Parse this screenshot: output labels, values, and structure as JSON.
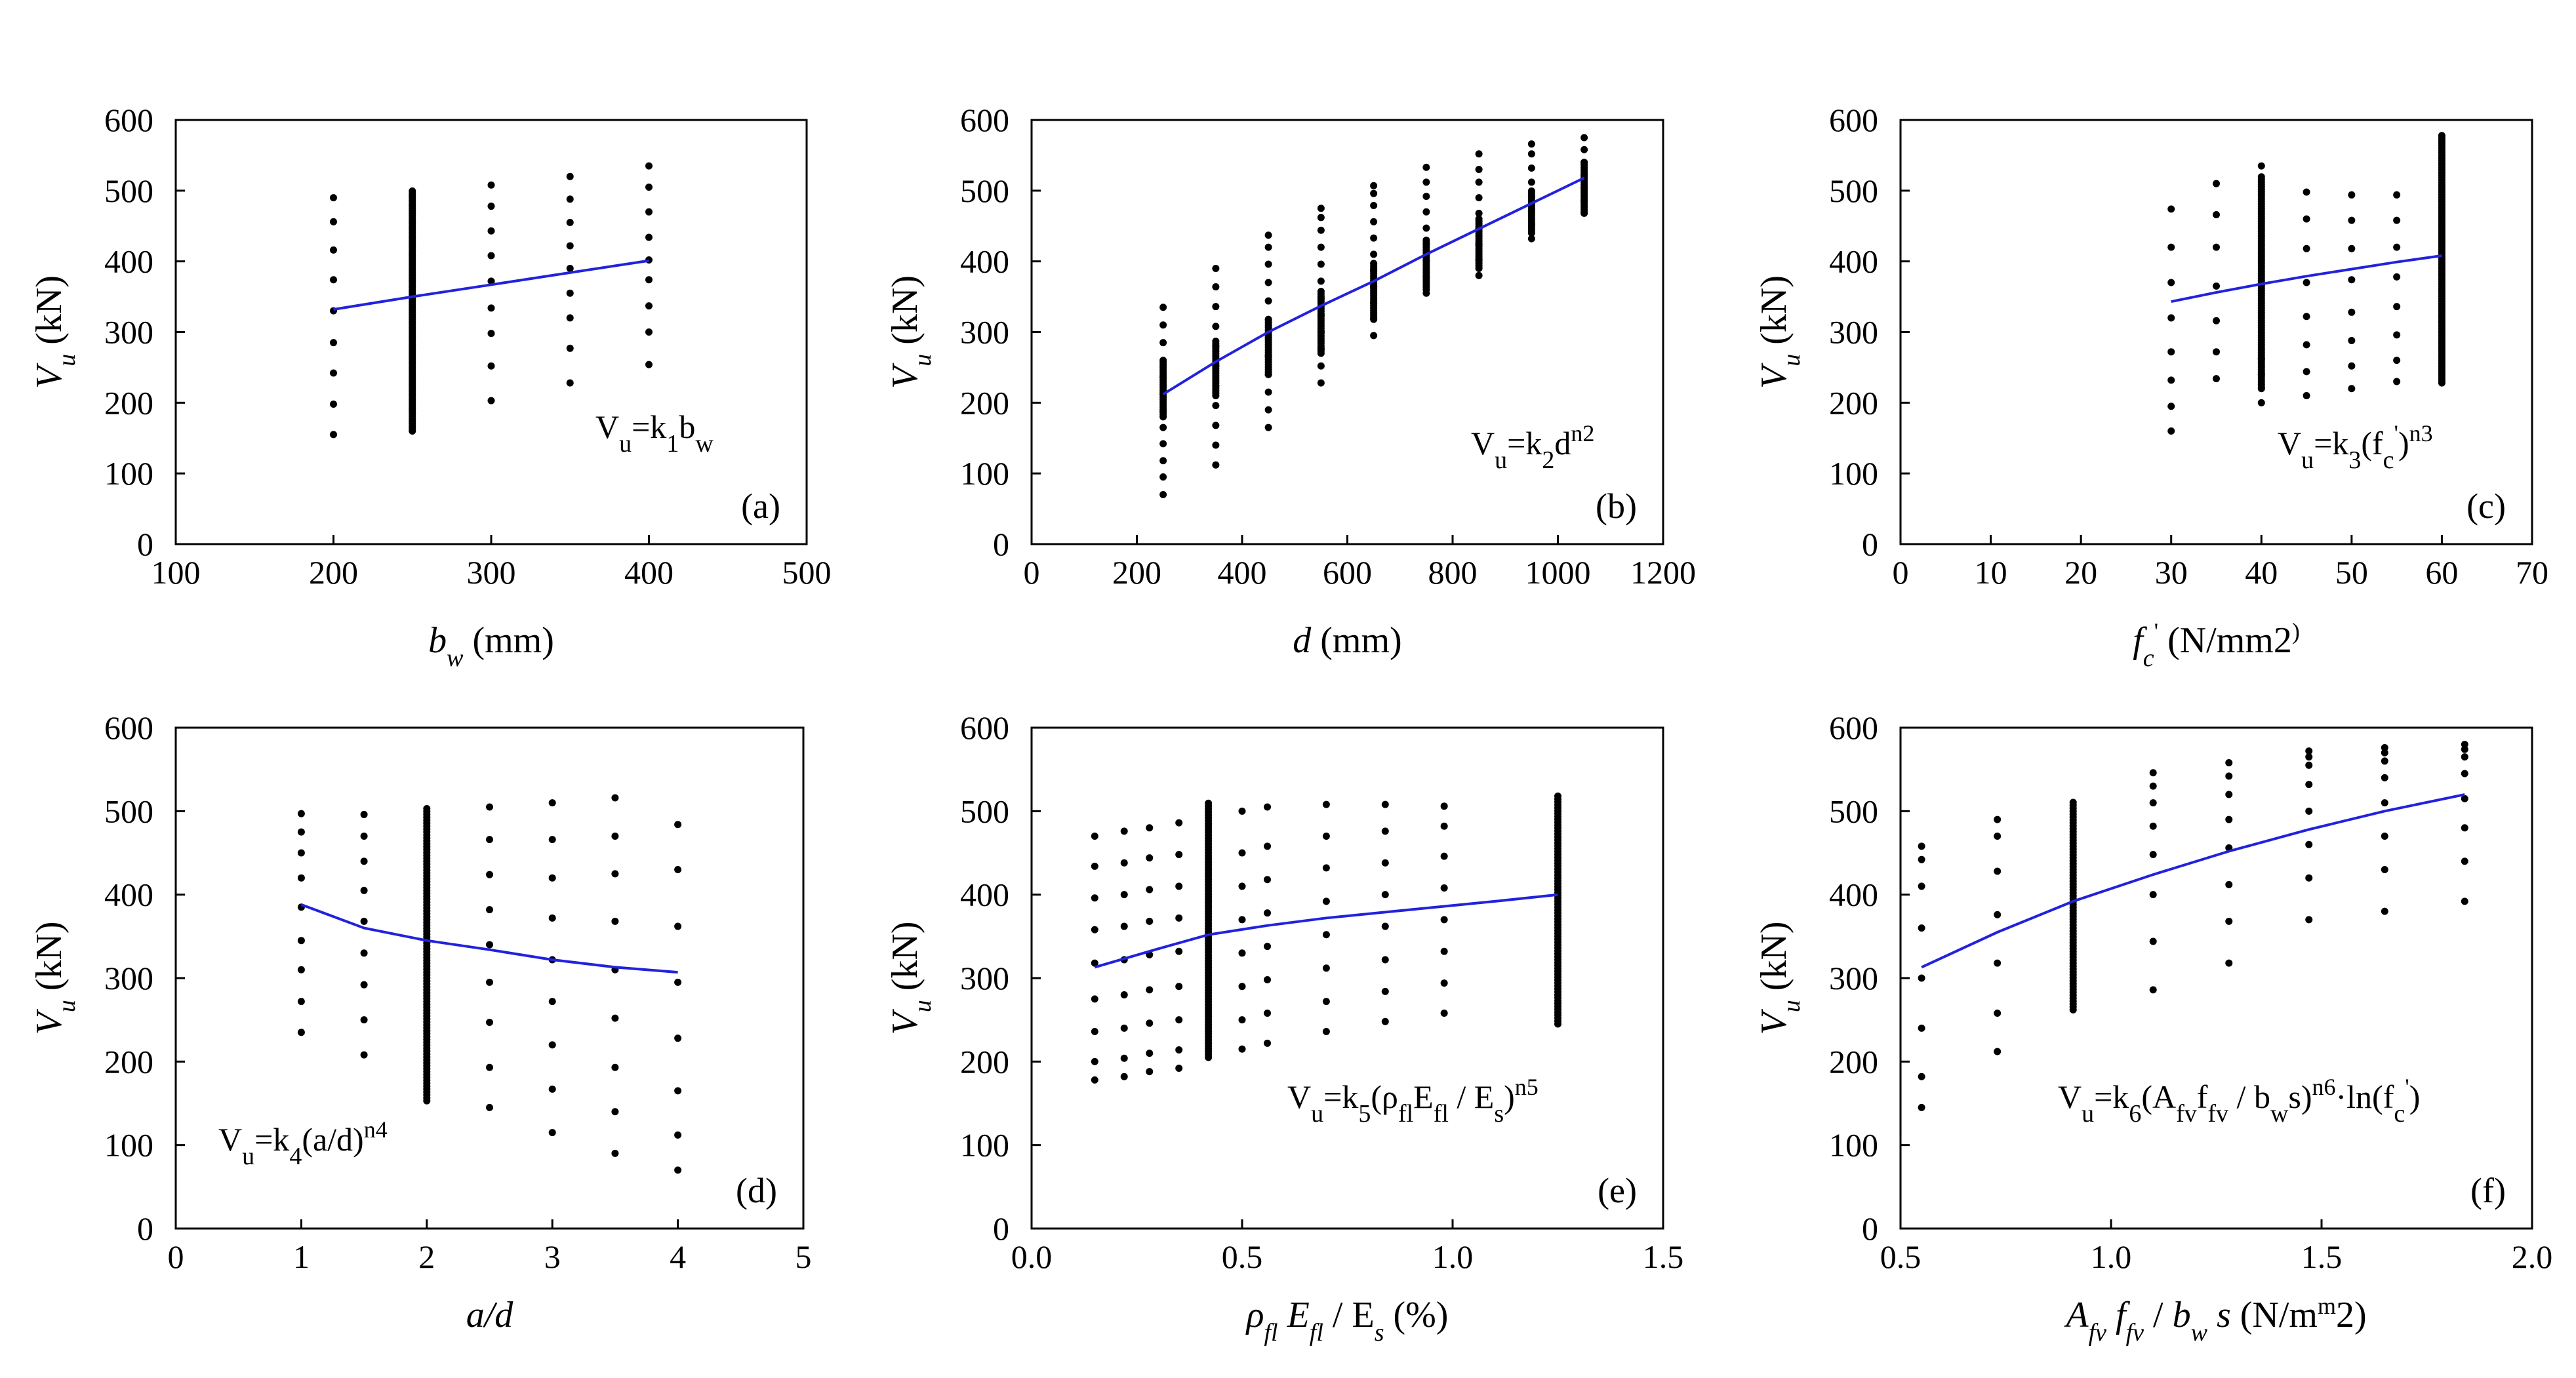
{
  "figure": {
    "shared_y_label": "Vu (kN)",
    "line_color": "#2222dd",
    "dot_color": "#000000"
  },
  "chart_data": [
    {
      "type": "scatter",
      "panel": "(a)",
      "xlabel": "bw (mm)",
      "ylabel": "Vu (kN)",
      "formula": "Vu=k1bw",
      "xlim": [
        100,
        500
      ],
      "ylim": [
        0,
        600
      ],
      "xticks": [
        100,
        200,
        300,
        400,
        500
      ],
      "xtick_labels": [
        "100",
        "200",
        "300",
        "400",
        "500"
      ],
      "yticks": [
        0,
        100,
        200,
        300,
        400,
        500,
        600
      ],
      "ytick_labels": [
        "0",
        "100",
        "200",
        "300",
        "400",
        "500",
        "600"
      ],
      "points": [
        {
          "x": 200,
          "ys": [
            155,
            198,
            242,
            285,
            330,
            374,
            416,
            456,
            490
          ]
        },
        {
          "x": 250,
          "dense": [
            160,
            502
          ]
        },
        {
          "x": 300,
          "ys": [
            203,
            252,
            298,
            334,
            372,
            408,
            443,
            478,
            508
          ]
        },
        {
          "x": 350,
          "ys": [
            228,
            277,
            320,
            355,
            390,
            422,
            455,
            488,
            520
          ]
        },
        {
          "x": 400,
          "ys": [
            254,
            300,
            337,
            374,
            402,
            434,
            470,
            505,
            535
          ]
        }
      ],
      "fit": [
        [
          200,
          332
        ],
        [
          250,
          350
        ],
        [
          300,
          367
        ],
        [
          350,
          384
        ],
        [
          400,
          401
        ]
      ]
    },
    {
      "type": "scatter",
      "panel": "(b)",
      "xlabel": "d (mm)",
      "ylabel": "Vu (kN)",
      "formula": "Vu=k2dn2",
      "xlim": [
        0,
        1200
      ],
      "ylim": [
        0,
        600
      ],
      "xticks": [
        0,
        200,
        400,
        600,
        800,
        1000,
        1200
      ],
      "xtick_labels": [
        "0",
        "200",
        "400",
        "600",
        "800",
        "1000",
        "1200"
      ],
      "yticks": [
        0,
        100,
        200,
        300,
        400,
        500,
        600
      ],
      "ytick_labels": [
        "0",
        "100",
        "200",
        "300",
        "400",
        "500",
        "600"
      ],
      "points": [
        {
          "x": 250,
          "ys": [
            70,
            95,
            118,
            142,
            165,
            188,
            212,
            236,
            260,
            285,
            310,
            335
          ],
          "dense": [
            180,
            260
          ]
        },
        {
          "x": 350,
          "ys": [
            112,
            140,
            168,
            196,
            224,
            252,
            280,
            308,
            336,
            364,
            390
          ],
          "dense": [
            210,
            290
          ]
        },
        {
          "x": 450,
          "ys": [
            165,
            190,
            215,
            240,
            266,
            292,
            318,
            344,
            370,
            396,
            420,
            437
          ],
          "dense": [
            240,
            320
          ]
        },
        {
          "x": 550,
          "ys": [
            228,
            252,
            276,
            300,
            324,
            348,
            372,
            396,
            420,
            444,
            462,
            475
          ],
          "dense": [
            270,
            360
          ]
        },
        {
          "x": 650,
          "ys": [
            295,
            318,
            341,
            364,
            387,
            410,
            433,
            456,
            479,
            496,
            507
          ],
          "dense": [
            320,
            400
          ]
        },
        {
          "x": 750,
          "ys": [
            355,
            378,
            401,
            424,
            447,
            470,
            492,
            512,
            533
          ],
          "dense": [
            360,
            430
          ]
        },
        {
          "x": 850,
          "ys": [
            380,
            402,
            424,
            446,
            468,
            490,
            512,
            530,
            552
          ],
          "dense": [
            390,
            460
          ]
        },
        {
          "x": 950,
          "ys": [
            432,
            452,
            472,
            492,
            512,
            532,
            552,
            566
          ],
          "dense": [
            440,
            500
          ]
        },
        {
          "x": 1050,
          "ys": [
            468,
            486,
            504,
            522,
            540,
            558,
            575
          ],
          "dense": [
            470,
            540
          ]
        }
      ],
      "fit": [
        [
          250,
          212
        ],
        [
          350,
          258
        ],
        [
          450,
          300
        ],
        [
          550,
          337
        ],
        [
          650,
          372
        ],
        [
          750,
          410
        ],
        [
          850,
          446
        ],
        [
          950,
          482
        ],
        [
          1050,
          518
        ]
      ]
    },
    {
      "type": "scatter",
      "panel": "(c)",
      "xlabel": "fc' (N/mm2)",
      "ylabel": "Vu (kN)",
      "formula": "Vu=k3(fc')n3",
      "xlim": [
        0,
        70
      ],
      "ylim": [
        0,
        600
      ],
      "xticks": [
        0,
        10,
        20,
        30,
        40,
        50,
        60,
        70
      ],
      "xtick_labels": [
        "0",
        "10",
        "20",
        "30",
        "40",
        "50",
        "60",
        "70"
      ],
      "yticks": [
        0,
        100,
        200,
        300,
        400,
        500,
        600
      ],
      "ytick_labels": [
        "0",
        "100",
        "200",
        "300",
        "400",
        "500",
        "600"
      ],
      "points": [
        {
          "x": 30,
          "ys": [
            160,
            195,
            232,
            272,
            320,
            370,
            420,
            474
          ]
        },
        {
          "x": 35,
          "ys": [
            234,
            272,
            316,
            365,
            420,
            466,
            510
          ]
        },
        {
          "x": 40,
          "ys": [
            200,
            220,
            240,
            262,
            535
          ],
          "dense": [
            222,
            520
          ]
        },
        {
          "x": 45,
          "ys": [
            210,
            244,
            282,
            322,
            370,
            418,
            460,
            498
          ]
        },
        {
          "x": 50,
          "ys": [
            220,
            252,
            288,
            328,
            374,
            418,
            458,
            494
          ]
        },
        {
          "x": 55,
          "ys": [
            230,
            260,
            296,
            336,
            378,
            420,
            458,
            494
          ]
        },
        {
          "x": 60,
          "dense": [
            228,
            578
          ]
        }
      ],
      "fit": [
        [
          30,
          343
        ],
        [
          35,
          356
        ],
        [
          40,
          368
        ],
        [
          45,
          379
        ],
        [
          50,
          389
        ],
        [
          55,
          399
        ],
        [
          60,
          408
        ]
      ]
    },
    {
      "type": "scatter",
      "panel": "(d)",
      "xlabel": "a/d",
      "ylabel": "Vu (kN)",
      "formula": "Vu=k4(a/d)n4",
      "xlim": [
        0,
        5
      ],
      "ylim": [
        0,
        600
      ],
      "xticks": [
        0,
        1,
        2,
        3,
        4,
        5
      ],
      "xtick_labels": [
        "0",
        "1",
        "2",
        "3",
        "4",
        "5"
      ],
      "yticks": [
        0,
        100,
        200,
        300,
        400,
        500,
        600
      ],
      "ytick_labels": [
        "0",
        "100",
        "200",
        "300",
        "400",
        "500",
        "600"
      ],
      "points": [
        {
          "x": 1,
          "ys": [
            235,
            272,
            310,
            345,
            385,
            420,
            450,
            475,
            497
          ]
        },
        {
          "x": 1.5,
          "ys": [
            208,
            250,
            292,
            330,
            368,
            405,
            440,
            470,
            496
          ]
        },
        {
          "x": 2,
          "dense": [
            153,
            503
          ]
        },
        {
          "x": 2.5,
          "ys": [
            145,
            193,
            247,
            295,
            340,
            382,
            424,
            466,
            505
          ]
        },
        {
          "x": 3,
          "ys": [
            115,
            167,
            220,
            272,
            322,
            372,
            420,
            466,
            510
          ]
        },
        {
          "x": 3.5,
          "ys": [
            90,
            140,
            193,
            252,
            310,
            368,
            425,
            470,
            516
          ]
        },
        {
          "x": 4,
          "ys": [
            70,
            112,
            165,
            228,
            295,
            362,
            430,
            484
          ]
        }
      ],
      "fit": [
        [
          1,
          388
        ],
        [
          1.5,
          360
        ],
        [
          2,
          345
        ],
        [
          2.5,
          334
        ],
        [
          3,
          322
        ],
        [
          3.5,
          313
        ],
        [
          4,
          307
        ]
      ]
    },
    {
      "type": "scatter",
      "panel": "(e)",
      "xlabel": "ρfl Efl / Es (%)",
      "ylabel": "Vu (kN)",
      "formula": "Vu=k5(ρflEfl / Es)n5",
      "xlim": [
        0,
        1.5
      ],
      "ylim": [
        0,
        600
      ],
      "xticks": [
        0,
        0.5,
        1.0,
        1.5
      ],
      "xtick_labels": [
        "0.0",
        "0.5",
        "1.0",
        "1.5"
      ],
      "yticks": [
        0,
        100,
        200,
        300,
        400,
        500,
        600
      ],
      "ytick_labels": [
        "0",
        "100",
        "200",
        "300",
        "400",
        "500",
        "600"
      ],
      "points": [
        {
          "x": 0.15,
          "ys": [
            178,
            200,
            236,
            275,
            318,
            358,
            396,
            434,
            470
          ]
        },
        {
          "x": 0.22,
          "ys": [
            182,
            204,
            240,
            280,
            322,
            362,
            400,
            438,
            476
          ]
        },
        {
          "x": 0.28,
          "ys": [
            188,
            210,
            246,
            286,
            328,
            368,
            406,
            444,
            480
          ]
        },
        {
          "x": 0.35,
          "ys": [
            192,
            214,
            250,
            290,
            332,
            372,
            410,
            448,
            486
          ]
        },
        {
          "x": 0.42,
          "dense": [
            205,
            510
          ]
        },
        {
          "x": 0.5,
          "ys": [
            215,
            250,
            290,
            330,
            370,
            410,
            450,
            500
          ]
        },
        {
          "x": 0.56,
          "ys": [
            222,
            258,
            298,
            338,
            378,
            418,
            458,
            505
          ]
        },
        {
          "x": 0.7,
          "ys": [
            236,
            272,
            312,
            352,
            392,
            432,
            470,
            508
          ]
        },
        {
          "x": 0.84,
          "ys": [
            248,
            284,
            322,
            362,
            400,
            438,
            476,
            508
          ]
        },
        {
          "x": 0.98,
          "ys": [
            258,
            294,
            332,
            370,
            408,
            446,
            482,
            506
          ]
        },
        {
          "x": 1.25,
          "dense": [
            245,
            520
          ]
        }
      ],
      "fit": [
        [
          0.15,
          313
        ],
        [
          0.3,
          335
        ],
        [
          0.42,
          352
        ],
        [
          0.56,
          363
        ],
        [
          0.7,
          372
        ],
        [
          0.84,
          379
        ],
        [
          0.98,
          386
        ],
        [
          1.1,
          392
        ],
        [
          1.25,
          400
        ]
      ]
    },
    {
      "type": "scatter",
      "panel": "(f)",
      "xlabel": "Afv ffv / bw s (N/mm2)",
      "ylabel": "Vu (kN)",
      "formula": "Vu=k6(Afvffv / bws)n6·ln(fc')",
      "xlim": [
        0.5,
        2.0
      ],
      "ylim": [
        0,
        600
      ],
      "xticks": [
        0.5,
        1.0,
        1.5,
        2.0
      ],
      "xtick_labels": [
        "0.5",
        "1.0",
        "1.5",
        "2.0"
      ],
      "yticks": [
        0,
        100,
        200,
        300,
        400,
        500,
        600
      ],
      "ytick_labels": [
        "0",
        "100",
        "200",
        "300",
        "400",
        "500",
        "600"
      ],
      "points": [
        {
          "x": 0.55,
          "ys": [
            145,
            182,
            240,
            300,
            360,
            410,
            442,
            458
          ]
        },
        {
          "x": 0.73,
          "ys": [
            212,
            258,
            318,
            376,
            428,
            470,
            490
          ]
        },
        {
          "x": 0.91,
          "dense": [
            262,
            512
          ]
        },
        {
          "x": 1.1,
          "ys": [
            286,
            344,
            400,
            448,
            482,
            510,
            530,
            546
          ]
        },
        {
          "x": 1.28,
          "ys": [
            318,
            368,
            412,
            456,
            490,
            520,
            542,
            558
          ]
        },
        {
          "x": 1.47,
          "ys": [
            370,
            420,
            460,
            500,
            532,
            555,
            565,
            572
          ]
        },
        {
          "x": 1.65,
          "ys": [
            380,
            430,
            470,
            510,
            540,
            560,
            570,
            576
          ]
        },
        {
          "x": 1.84,
          "ys": [
            392,
            440,
            480,
            515,
            545,
            565,
            574,
            580
          ]
        }
      ],
      "fit": [
        [
          0.55,
          313
        ],
        [
          0.73,
          355
        ],
        [
          0.91,
          392
        ],
        [
          1.1,
          424
        ],
        [
          1.28,
          452
        ],
        [
          1.47,
          478
        ],
        [
          1.65,
          500
        ],
        [
          1.84,
          520
        ]
      ]
    }
  ]
}
